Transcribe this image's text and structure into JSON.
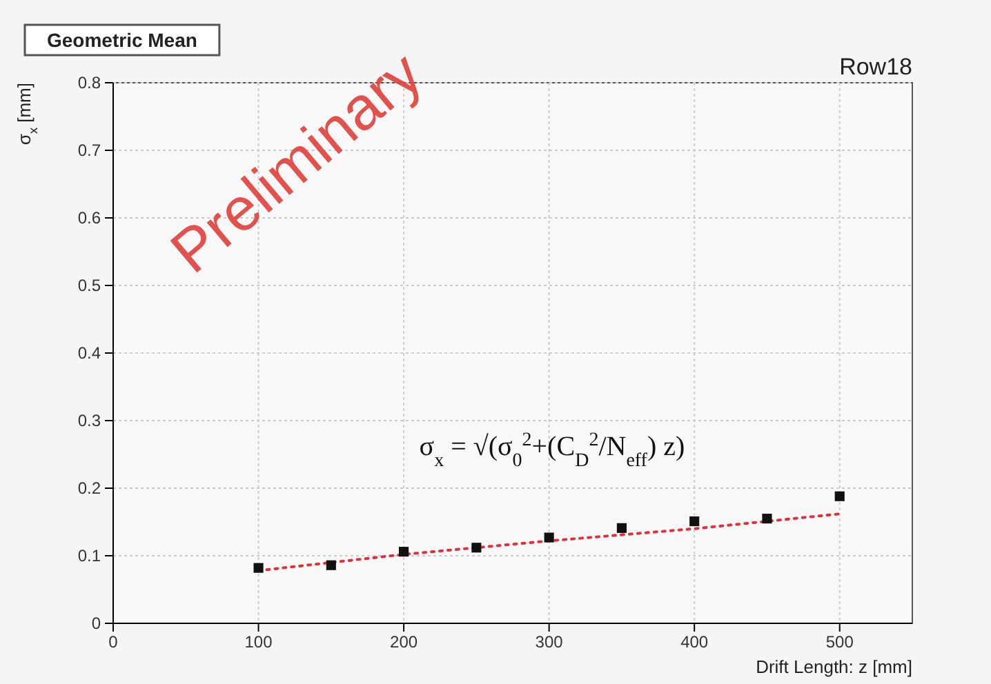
{
  "chart_data": {
    "type": "scatter",
    "title": "Geometric Mean",
    "subtitle": "Row18",
    "xlabel": "Drift Length: z [mm]",
    "ylabel": "σ$_{x}$ [mm]",
    "x": [
      100,
      150,
      200,
      250,
      300,
      350,
      400,
      450,
      500
    ],
    "series": [
      {
        "color": "#111111",
        "marker": "square",
        "values": [
          0.082,
          0.086,
          0.106,
          0.112,
          0.127,
          0.141,
          0.151,
          0.155,
          0.188
        ]
      },
      {
        "type": "line",
        "color": "#e0303a",
        "line_style": "dotted",
        "x": [
          100,
          200,
          300,
          400,
          500
        ],
        "values": [
          0.078,
          0.102,
          0.122,
          0.14,
          0.162
        ]
      }
    ],
    "xlim": [
      0,
      550
    ],
    "ylim": [
      0,
      0.8
    ],
    "xticks": [
      0,
      100,
      200,
      300,
      400,
      500
    ],
    "yticks": [
      0,
      0.1,
      0.2,
      0.3,
      0.4,
      0.5,
      0.6,
      0.7,
      0.8
    ],
    "grid": true,
    "annotations": [
      "σ$_{x}$ = √(σ$_{0}$$^{2}$+(C$_{D}$$^{2}$/N$_{eff}$) z)",
      "Preliminary"
    ]
  }
}
